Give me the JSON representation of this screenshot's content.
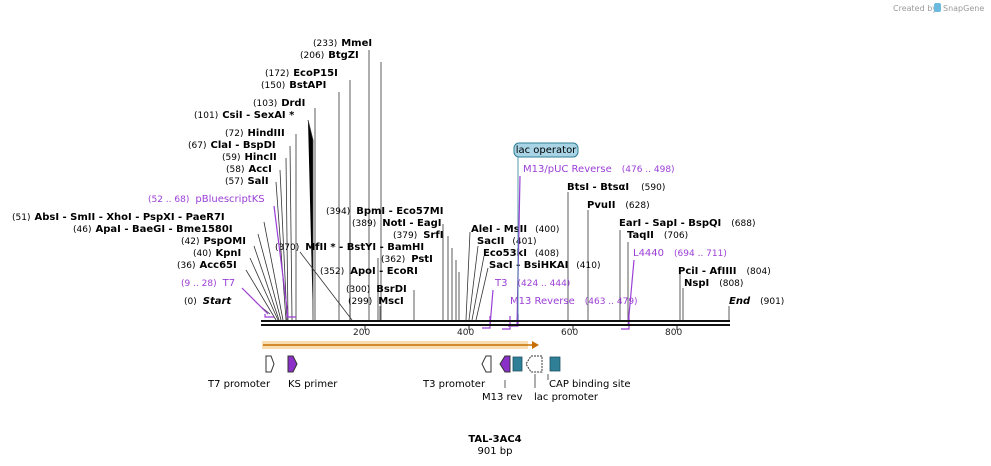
{
  "credit": {
    "prefix": "Created by",
    "brand": "SnapGene"
  },
  "plasmid": {
    "name": "TAL-3AC4",
    "length": "901 bp"
  },
  "ruler": {
    "ticks": [
      "200",
      "400",
      "600",
      "800"
    ]
  },
  "sites": [
    {
      "pos": "(233)",
      "name": "MmeI"
    },
    {
      "pos": "(206)",
      "name": "BtgZI"
    },
    {
      "pos": "(172)",
      "name": "EcoP15I"
    },
    {
      "pos": "(150)",
      "name": "BstAPI"
    },
    {
      "pos": "(103)",
      "name": "DrdI"
    },
    {
      "pos": "(101)",
      "name": "CsiI   - SexAI *"
    },
    {
      "pos": "(72)",
      "name": "HindIII"
    },
    {
      "pos": "(67)",
      "name": "ClaI   - BspDI"
    },
    {
      "pos": "(59)",
      "name": "HincII"
    },
    {
      "pos": "(58)",
      "name": "AccI"
    },
    {
      "pos": "(57)",
      "name": "SalI"
    },
    {
      "pos": "(51)",
      "name": "AbsI   - SmII   - XhoI   - PspXI   - PaeR7I"
    },
    {
      "pos": "(46)",
      "name": "ApaI   - BaeGI   - Bme1580I"
    },
    {
      "pos": "(42)",
      "name": "PspOMI"
    },
    {
      "pos": "(40)",
      "name": "KpnI"
    },
    {
      "pos": "(36)",
      "name": "Acc65I"
    },
    {
      "pos": "(0)",
      "name": "Start"
    },
    {
      "pos": "(370)",
      "name": "MfII *   - BstYI   - BamHI"
    },
    {
      "pos": "(394)",
      "name": "BpmI   - Eco57MI"
    },
    {
      "pos": "(389)",
      "name": "NotI   - EagI"
    },
    {
      "pos": "(379)",
      "name": "SrfI"
    },
    {
      "pos": "(362)",
      "name": "PstI"
    },
    {
      "pos": "(352)",
      "name": "ApoI   - EcoRI"
    },
    {
      "pos": "(300)",
      "name": "BsrDI"
    },
    {
      "pos": "(299)",
      "name": "MscI"
    },
    {
      "pos": "(400)",
      "name": "AleI   - MsII"
    },
    {
      "pos": "(401)",
      "name": "SacII"
    },
    {
      "pos": "(408)",
      "name": "Eco53kI"
    },
    {
      "pos": "(410)",
      "name": "SacI   - BsiHKAI"
    },
    {
      "pos": "(590)",
      "name": "BtsI   - BtsαI"
    },
    {
      "pos": "(628)",
      "name": "PvuII"
    },
    {
      "pos": "(688)",
      "name": "EarI   - SapI   - BspQI"
    },
    {
      "pos": "(706)",
      "name": "TaqII"
    },
    {
      "pos": "(804)",
      "name": "PciI   - AfIIII"
    },
    {
      "pos": "(808)",
      "name": "NspI"
    },
    {
      "pos": "(901)",
      "name": "End"
    }
  ],
  "primers": [
    {
      "name": "pBluescriptKS",
      "range": "(52 .. 68)"
    },
    {
      "name": "T7",
      "range": "(9 .. 28)"
    },
    {
      "name": "T3",
      "range": "(424 .. 444)"
    },
    {
      "name": "M13 Reverse",
      "range": "(463 .. 479)"
    },
    {
      "name": "M13/pUC Reverse",
      "range": "(476 .. 498)"
    },
    {
      "name": "L4440",
      "range": "(694 .. 711)"
    }
  ],
  "operator": "lac operator",
  "features": [
    {
      "name": "T7 promoter"
    },
    {
      "name": "KS primer"
    },
    {
      "name": "T3 promoter"
    },
    {
      "name": "M13 rev"
    },
    {
      "name": "lac promoter"
    },
    {
      "name": "CAP binding site"
    }
  ],
  "colors": {
    "primer": "#9b3fd6",
    "operator_fill": "#a8d4e6",
    "orf_fill": "#f5c781",
    "cap_fill": "#2f7f97"
  }
}
